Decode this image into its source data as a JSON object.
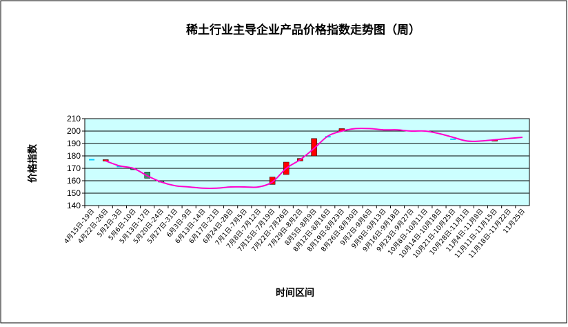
{
  "chart_data": {
    "type": "candlestick-line",
    "title": "稀土行业主导企业产品价格指数走势图（周）",
    "y_label": "价格指数",
    "x_label": "时间区间",
    "categories": [
      "4月15日-19日",
      "4月22日-26日",
      "5月2日-3日",
      "5月6日-10日",
      "5月13日-17日",
      "5月20日-24日",
      "5月27日-31日",
      "6月3日-9日",
      "6月13日-14日",
      "6月17日-21日",
      "6月24日-28日",
      "7月1日-7月5日",
      "7月8日-7月12日",
      "7月15日-7月19日",
      "7月22日-7月26日",
      "7月29日-8月2日",
      "8月5日-8月9日",
      "8月12日-8月16日",
      "8月19日-8月23日",
      "8月26日-8月30日",
      "9月2日-9月6日",
      "9月9日-9月13日",
      "9月16日-9月18日",
      "9月23日-9月27日",
      "10月8日-10月11日",
      "10月14日-10月18日",
      "10月21日-10月25日",
      "10月28日-11月1日",
      "11月4日-11月8日",
      "11月11日-11月15日",
      "11月18日-11月22日",
      "11月25日"
    ],
    "open": [
      177.5,
      176,
      172,
      170,
      167,
      160,
      null,
      null,
      null,
      null,
      null,
      null,
      null,
      157,
      165,
      176,
      180,
      196,
      200,
      null,
      null,
      null,
      null,
      null,
      null,
      null,
      194,
      null,
      null,
      192,
      null,
      null
    ],
    "close": [
      177.5,
      177,
      172,
      169,
      162,
      159,
      null,
      null,
      null,
      null,
      null,
      null,
      null,
      163,
      175,
      178,
      194,
      196,
      202,
      null,
      null,
      null,
      null,
      null,
      null,
      null,
      194,
      null,
      null,
      193,
      null,
      null
    ],
    "up_color": "#ff0000",
    "down_color": "#339966",
    "flat_color": "#00ccff",
    "line": {
      "color": "#ff00cc",
      "values": [
        null,
        176,
        172,
        170,
        164,
        159,
        156,
        155,
        154,
        154,
        155,
        155,
        155,
        159,
        170,
        177,
        186,
        196,
        200,
        202,
        202,
        201,
        201,
        200,
        200,
        198,
        195,
        192,
        192,
        193,
        194,
        195
      ]
    },
    "ylim": [
      140,
      210
    ],
    "yticks": [
      140,
      150,
      160,
      170,
      180,
      190,
      200,
      210
    ],
    "grid": true,
    "plot_background": "#ccffff"
  }
}
